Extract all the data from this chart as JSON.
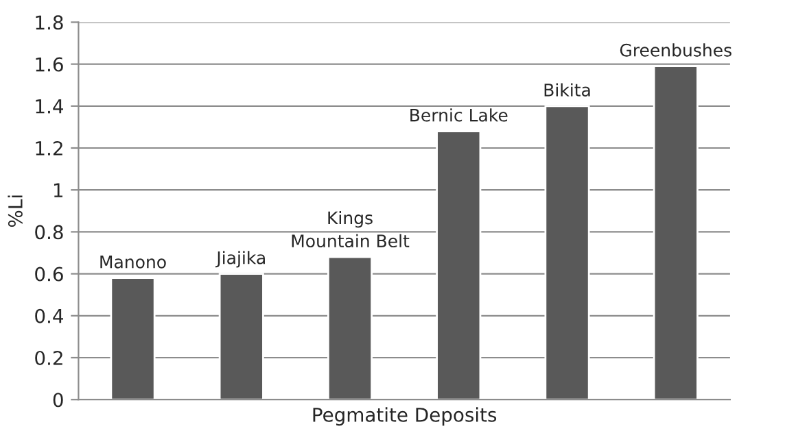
{
  "chart_data": {
    "type": "bar",
    "xlabel": "Pegmatite Deposits",
    "ylabel": "%Li",
    "categories": [
      "Manono",
      "Jiajika",
      "Kings\nMountain Belt",
      "Bernic Lake",
      "Bikita",
      "Greenbushes"
    ],
    "values": [
      0.58,
      0.6,
      0.68,
      1.28,
      1.4,
      1.59
    ],
    "color": "#595959",
    "ylim": [
      0,
      1.8
    ],
    "yticks": [
      0,
      0.2,
      0.4,
      0.6,
      0.8,
      1,
      1.2,
      1.4,
      1.6,
      1.8
    ],
    "grid": "y",
    "legend": false
  }
}
